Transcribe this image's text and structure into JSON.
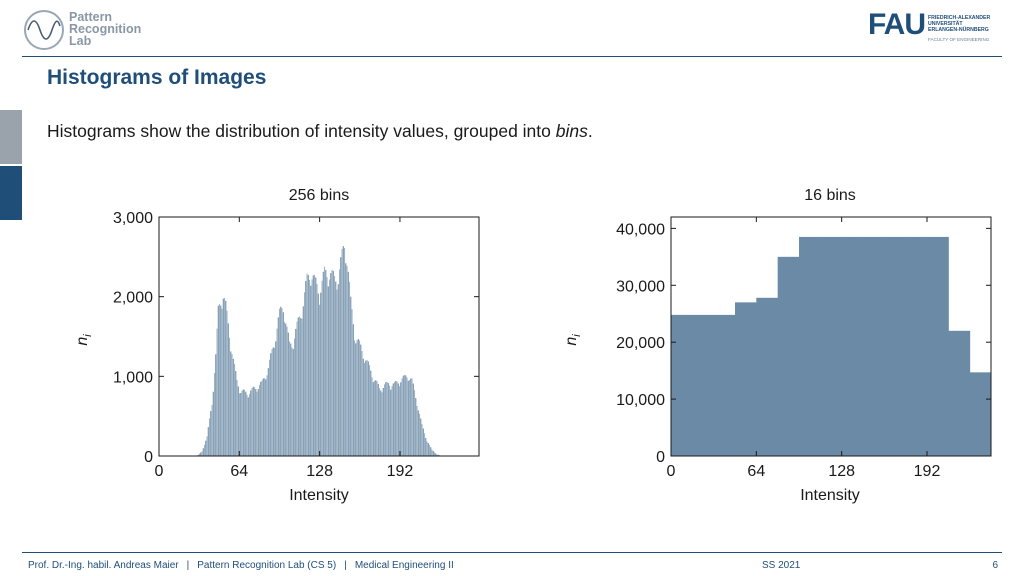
{
  "header": {
    "lab_logo_lines": [
      "Pattern",
      "Recognition",
      "Lab"
    ],
    "fau_logo_text": "FAU",
    "fau_university_lines": [
      "FRIEDRICH-ALEXANDER",
      "UNIVERSITÄT",
      "ERLANGEN-NÜRNBERG"
    ],
    "fau_faculty": "FACULTY OF ENGINEERING"
  },
  "slide": {
    "title": "Histograms of Images",
    "text_main": "Histograms show the distribution of intensity values, grouped into ",
    "text_emph": "bins",
    "text_end": "."
  },
  "footer": {
    "author": "Prof. Dr.-Ing. habil. Andreas Maier",
    "sep": "|",
    "lab": "Pattern Recognition Lab (CS 5)",
    "course": "Medical Engineering II",
    "semester": "SS 2021",
    "page": "6"
  },
  "colors": {
    "accent": "#1f4e79",
    "bar_fill": "#6a8aa6",
    "bar_fill_light": "#9fb3c6"
  },
  "chart_data": [
    {
      "type": "bar",
      "title": "256 bins",
      "xlabel": "Intensity",
      "ylabel": "n_i",
      "ylabel_main": "n",
      "ylabel_sub": "i",
      "xlim": [
        0,
        255
      ],
      "ylim": [
        0,
        3000
      ],
      "xticks": [
        0,
        64,
        128,
        192
      ],
      "xtick_labels": [
        "0",
        "64",
        "128",
        "192"
      ],
      "yticks": [
        0,
        1000,
        2000,
        3000
      ],
      "ytick_labels": [
        "0",
        "1,000",
        "2,000",
        "3,000"
      ],
      "bins": 256,
      "profile": [
        [
          0,
          0
        ],
        [
          30,
          0
        ],
        [
          34,
          60
        ],
        [
          38,
          250
        ],
        [
          42,
          700
        ],
        [
          45,
          1300
        ],
        [
          47,
          1900
        ],
        [
          49,
          2050
        ],
        [
          51,
          2100
        ],
        [
          53,
          1950
        ],
        [
          56,
          1600
        ],
        [
          59,
          1250
        ],
        [
          62,
          980
        ],
        [
          65,
          850
        ],
        [
          70,
          820
        ],
        [
          76,
          880
        ],
        [
          82,
          950
        ],
        [
          87,
          1150
        ],
        [
          92,
          1500
        ],
        [
          96,
          1850
        ],
        [
          99,
          1980
        ],
        [
          101,
          1750
        ],
        [
          104,
          1450
        ],
        [
          107,
          1500
        ],
        [
          111,
          1750
        ],
        [
          115,
          2000
        ],
        [
          118,
          2300
        ],
        [
          121,
          2420
        ],
        [
          124,
          2280
        ],
        [
          128,
          2150
        ],
        [
          132,
          2380
        ],
        [
          136,
          2400
        ],
        [
          140,
          2300
        ],
        [
          143,
          2350
        ],
        [
          146,
          2600
        ],
        [
          148,
          2750
        ],
        [
          150,
          2620
        ],
        [
          153,
          2000
        ],
        [
          156,
          1600
        ],
        [
          160,
          1450
        ],
        [
          164,
          1300
        ],
        [
          168,
          1150
        ],
        [
          172,
          1000
        ],
        [
          176,
          880
        ],
        [
          180,
          920
        ],
        [
          184,
          950
        ],
        [
          188,
          930
        ],
        [
          192,
          990
        ],
        [
          196,
          1020
        ],
        [
          199,
          1060
        ],
        [
          202,
          980
        ],
        [
          206,
          700
        ],
        [
          210,
          400
        ],
        [
          214,
          200
        ],
        [
          218,
          80
        ],
        [
          222,
          20
        ],
        [
          226,
          0
        ],
        [
          255,
          0
        ]
      ]
    },
    {
      "type": "bar",
      "title": "16 bins",
      "xlabel": "Intensity",
      "ylabel": "n_i",
      "ylabel_main": "n",
      "ylabel_sub": "i",
      "xlim": [
        0,
        240
      ],
      "ylim": [
        0,
        42000
      ],
      "xticks": [
        0,
        64,
        128,
        192
      ],
      "xtick_labels": [
        "0",
        "64",
        "128",
        "192"
      ],
      "yticks": [
        0,
        10000,
        20000,
        30000,
        40000
      ],
      "ytick_labels": [
        "0",
        "10,000",
        "20,000",
        "30,000",
        "40,000"
      ],
      "bin_width": 16,
      "categories": [
        "0",
        "16",
        "32",
        "48",
        "64",
        "80",
        "96",
        "112",
        "128",
        "144",
        "160",
        "176",
        "192",
        "208",
        "224"
      ],
      "values": [
        24800,
        24800,
        24800,
        27000,
        27800,
        35000,
        38500,
        38500,
        38500,
        38500,
        38500,
        38500,
        38500,
        22000,
        14700
      ]
    }
  ]
}
